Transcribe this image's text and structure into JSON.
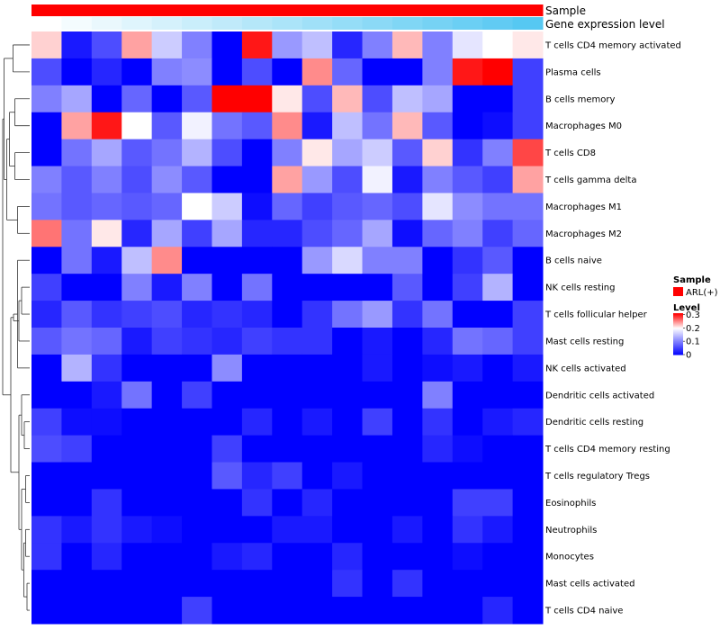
{
  "chart_data": {
    "type": "heatmap",
    "annotations": [
      {
        "name": "Sample",
        "kind": "categorical",
        "colors": [
          "#ff0000"
        ]
      },
      {
        "name": "Gene expression level",
        "kind": "gradient",
        "from": "#ffffff",
        "to": "#56c8f2"
      }
    ],
    "rows": [
      "T cells CD4 memory activated",
      "Plasma cells",
      "B cells memory",
      "Macrophages M0",
      "T cells CD8",
      "T cells gamma delta",
      "Macrophages M1",
      "Macrophages M2",
      "B cells naive",
      "NK cells resting",
      "T cells follicular helper",
      "Mast cells resting",
      "NK cells activated",
      "Dendritic cells activated",
      "Dendritic cells resting",
      "T cells CD4 memory resting",
      "T cells regulatory  Tregs",
      "Eosinophils",
      "Neutrophils",
      "Monocytes",
      "Mast cells activated",
      "T cells CD4 naive"
    ],
    "n_columns": 17,
    "values": [
      [
        0.22,
        0.02,
        0.06,
        0.24,
        0.16,
        0.1,
        0.0,
        0.3,
        0.12,
        0.15,
        0.03,
        0.1,
        0.23,
        0.1,
        0.18,
        0.2,
        0.21
      ],
      [
        0.06,
        0.0,
        0.03,
        0.0,
        0.1,
        0.11,
        0.0,
        0.06,
        0.0,
        0.25,
        0.08,
        0.0,
        0.0,
        0.1,
        0.3,
        0.31,
        0.05
      ],
      [
        0.1,
        0.13,
        0.0,
        0.08,
        0.0,
        0.07,
        0.31,
        0.31,
        0.21,
        0.06,
        0.23,
        0.06,
        0.15,
        0.13,
        0.0,
        0.0,
        0.05
      ],
      [
        0.0,
        0.24,
        0.3,
        0.2,
        0.07,
        0.19,
        0.09,
        0.07,
        0.25,
        0.02,
        0.15,
        0.09,
        0.23,
        0.07,
        0.0,
        0.01,
        0.05
      ],
      [
        0.0,
        0.09,
        0.13,
        0.07,
        0.09,
        0.14,
        0.06,
        0.0,
        0.1,
        0.21,
        0.13,
        0.16,
        0.07,
        0.22,
        0.04,
        0.1,
        0.28
      ],
      [
        0.1,
        0.07,
        0.1,
        0.06,
        0.11,
        0.07,
        0.0,
        0.0,
        0.24,
        0.12,
        0.06,
        0.19,
        0.02,
        0.1,
        0.07,
        0.05,
        0.24
      ],
      [
        0.09,
        0.07,
        0.08,
        0.07,
        0.08,
        0.2,
        0.16,
        0.01,
        0.08,
        0.05,
        0.07,
        0.08,
        0.06,
        0.18,
        0.11,
        0.09,
        0.09
      ],
      [
        0.26,
        0.09,
        0.21,
        0.03,
        0.13,
        0.05,
        0.13,
        0.03,
        0.03,
        0.06,
        0.08,
        0.13,
        0.01,
        0.08,
        0.1,
        0.05,
        0.08
      ],
      [
        0.0,
        0.09,
        0.02,
        0.15,
        0.25,
        0.0,
        0.0,
        0.0,
        0.0,
        0.12,
        0.17,
        0.1,
        0.1,
        0.0,
        0.04,
        0.07,
        0.0
      ],
      [
        0.05,
        0.0,
        0.0,
        0.1,
        0.02,
        0.1,
        0.0,
        0.09,
        0.0,
        0.0,
        0.0,
        0.0,
        0.07,
        0.0,
        0.05,
        0.14,
        0.0
      ],
      [
        0.03,
        0.07,
        0.04,
        0.05,
        0.06,
        0.03,
        0.04,
        0.03,
        0.0,
        0.04,
        0.09,
        0.12,
        0.04,
        0.09,
        0.0,
        0.0,
        0.05
      ],
      [
        0.07,
        0.09,
        0.08,
        0.02,
        0.05,
        0.04,
        0.03,
        0.05,
        0.04,
        0.04,
        0.0,
        0.02,
        0.0,
        0.03,
        0.09,
        0.08,
        0.05
      ],
      [
        0.0,
        0.14,
        0.04,
        0.0,
        0.0,
        0.0,
        0.11,
        0.0,
        0.0,
        0.0,
        0.0,
        0.02,
        0.0,
        0.01,
        0.02,
        0.0,
        0.02
      ],
      [
        0.0,
        0.0,
        0.02,
        0.09,
        0.0,
        0.05,
        0.0,
        0.0,
        0.0,
        0.0,
        0.0,
        0.0,
        0.0,
        0.1,
        0.0,
        0.0,
        0.0
      ],
      [
        0.05,
        0.01,
        0.01,
        0.0,
        0.0,
        0.0,
        0.0,
        0.03,
        0.0,
        0.02,
        0.0,
        0.05,
        0.0,
        0.04,
        0.0,
        0.02,
        0.03
      ],
      [
        0.06,
        0.05,
        0.0,
        0.0,
        0.0,
        0.0,
        0.05,
        0.0,
        0.0,
        0.0,
        0.0,
        0.0,
        0.0,
        0.03,
        0.01,
        0.0,
        0.0
      ],
      [
        0.0,
        0.0,
        0.0,
        0.0,
        0.0,
        0.0,
        0.07,
        0.03,
        0.05,
        0.0,
        0.02,
        0.0,
        0.0,
        0.0,
        0.0,
        0.0,
        0.0
      ],
      [
        0.0,
        0.0,
        0.04,
        0.0,
        0.0,
        0.0,
        0.0,
        0.04,
        0.0,
        0.03,
        0.0,
        0.0,
        0.0,
        0.0,
        0.05,
        0.05,
        0.0
      ],
      [
        0.04,
        0.02,
        0.04,
        0.02,
        0.01,
        0.0,
        0.0,
        0.0,
        0.02,
        0.02,
        0.0,
        0.0,
        0.02,
        0.0,
        0.04,
        0.02,
        0.0
      ],
      [
        0.04,
        0.0,
        0.03,
        0.0,
        0.0,
        0.0,
        0.02,
        0.03,
        0.0,
        0.0,
        0.03,
        0.0,
        0.0,
        0.0,
        0.01,
        0.0,
        0.0
      ],
      [
        0.0,
        0.0,
        0.0,
        0.0,
        0.0,
        0.0,
        0.0,
        0.0,
        0.0,
        0.0,
        0.04,
        0.0,
        0.04,
        0.0,
        0.0,
        0.0,
        0.0
      ],
      [
        0.0,
        0.0,
        0.0,
        0.0,
        0.0,
        0.05,
        0.0,
        0.0,
        0.0,
        0.0,
        0.0,
        0.0,
        0.0,
        0.0,
        0.0,
        0.03,
        0.0
      ]
    ],
    "color_scale": {
      "min": 0,
      "mid": 0.2,
      "max": 0.31,
      "low": "#0000ff",
      "midColor": "#ffffff",
      "high": "#ff0000"
    },
    "legend": {
      "sample_title": "Sample",
      "sample_items": [
        {
          "label": "ARL(+)",
          "color": "#ff0000"
        }
      ],
      "level_title": "Level",
      "level_ticks": [
        {
          "value": 0.3,
          "label": "0.3"
        },
        {
          "value": 0.2,
          "label": "0.2"
        },
        {
          "value": 0.1,
          "label": "0.1"
        },
        {
          "value": 0,
          "label": "0"
        }
      ],
      "placement": "right-middle"
    },
    "dendrogram": "row clustering tree on left"
  }
}
